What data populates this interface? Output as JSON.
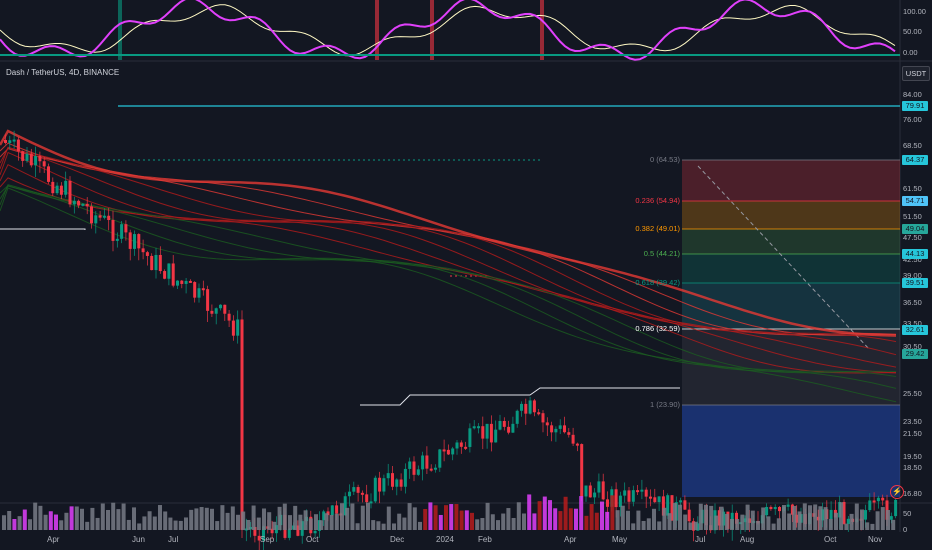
{
  "header": {
    "title": "Dash / TetherUS, 4D, BINANCE",
    "currency_badge": "USDT"
  },
  "osc_axis": [
    "100.00",
    "50.00",
    "0.00"
  ],
  "price_axis": [
    "84.00",
    "76.00",
    "68.50",
    "61.50",
    "57.50",
    "51.50",
    "47.50",
    "42.50",
    "39.00",
    "36.50",
    "33.50",
    "30.50",
    "25.50",
    "23.50",
    "21.50",
    "19.50",
    "18.50",
    "16.80"
  ],
  "price_tags": [
    {
      "text": "79.91",
      "color": "#26c6da"
    },
    {
      "text": "64.37",
      "color": "#26c6da"
    },
    {
      "text": "54.71",
      "color": "#4fc3f7"
    },
    {
      "text": "49.04",
      "color": "#26a69a"
    },
    {
      "text": "44.13",
      "color": "#26c6da"
    },
    {
      "text": "39.51",
      "color": "#26c6da"
    },
    {
      "text": "32.61",
      "color": "#26c6da"
    },
    {
      "text": "29.42",
      "color": "#26a69a"
    }
  ],
  "fib_labels": [
    {
      "text": "0 (64.53)",
      "color": "#787b86"
    },
    {
      "text": "0.236 (54.94)",
      "color": "#f23645"
    },
    {
      "text": "0.382 (49.01)",
      "color": "#ff9800"
    },
    {
      "text": "0.5 (44.21)",
      "color": "#4caf50"
    },
    {
      "text": "0.618 (39.42)",
      "color": "#089981"
    },
    {
      "text": "0.786 (32.59)",
      "color": "#ffffff"
    },
    {
      "text": "1 (23.90)",
      "color": "#787b86"
    }
  ],
  "vol_axis": [
    "50",
    "0"
  ],
  "time_labels": [
    "Apr",
    "Jun",
    "Jul",
    "Sep",
    "Oct",
    "Dec",
    "2024",
    "Feb",
    "Apr",
    "May",
    "Jul",
    "Aug",
    "Oct",
    "Nov"
  ],
  "colors": {
    "up": "#089981",
    "down": "#f23645",
    "ribbon_red": "#e53935",
    "fib_bg_blue": "#2962ff",
    "cyan": "#26c6da",
    "osc_pink": "#e040fb",
    "osc_yellow": "#fff9c4"
  },
  "icons": {
    "logo": "lightning-icon"
  }
}
